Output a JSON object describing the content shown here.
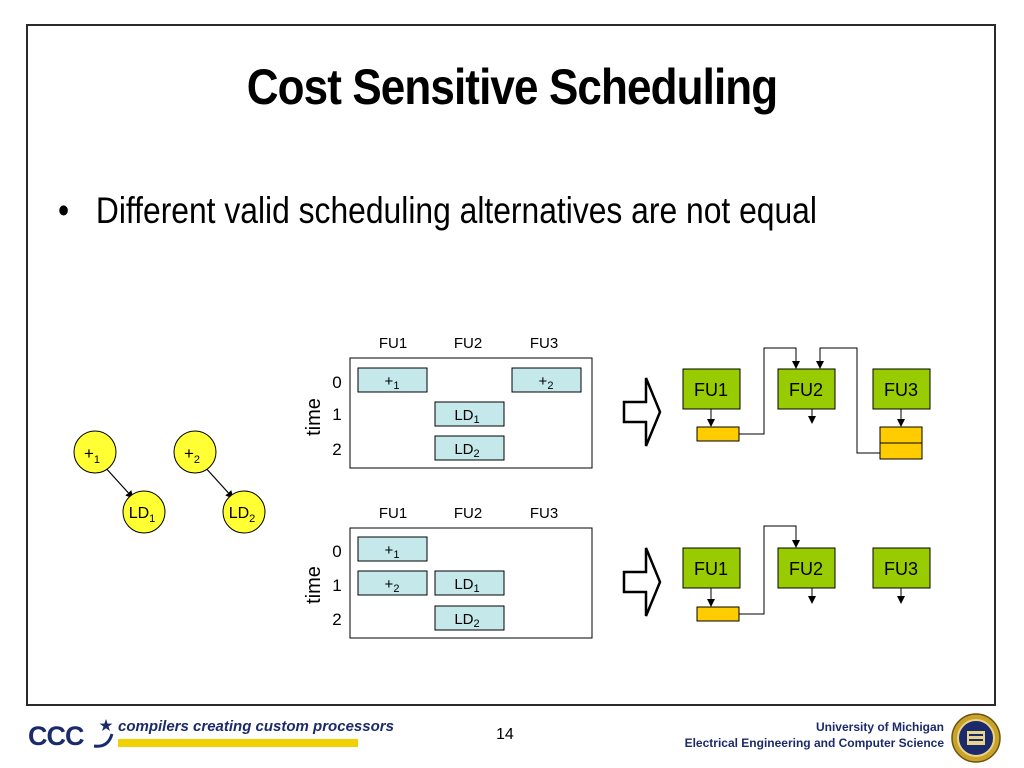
{
  "slide": {
    "title": "Cost Sensitive Scheduling",
    "bullet": "Different valid scheduling alternatives are not equal"
  },
  "dependency_graph": {
    "nodes": [
      {
        "id": "add1",
        "label": "+",
        "sub": "1"
      },
      {
        "id": "add2",
        "label": "+",
        "sub": "2"
      },
      {
        "id": "ld1",
        "label": "LD",
        "sub": "1"
      },
      {
        "id": "ld2",
        "label": "LD",
        "sub": "2"
      }
    ],
    "edges": [
      [
        "add1",
        "ld1"
      ],
      [
        "add2",
        "ld2"
      ]
    ]
  },
  "schedules": [
    {
      "columns": [
        "FU1",
        "FU2",
        "FU3"
      ],
      "time_label": "time",
      "rows": [
        "0",
        "1",
        "2"
      ],
      "ops": [
        {
          "label": "+",
          "sub": "1",
          "fu": 0,
          "t": 0
        },
        {
          "label": "+",
          "sub": "2",
          "fu": 2,
          "t": 0
        },
        {
          "label": "LD",
          "sub": "1",
          "fu": 1,
          "t": 1
        },
        {
          "label": "LD",
          "sub": "2",
          "fu": 1,
          "t": 2
        }
      ]
    },
    {
      "columns": [
        "FU1",
        "FU2",
        "FU3"
      ],
      "time_label": "time",
      "rows": [
        "0",
        "1",
        "2"
      ],
      "ops": [
        {
          "label": "+",
          "sub": "1",
          "fu": 0,
          "t": 0
        },
        {
          "label": "+",
          "sub": "2",
          "fu": 0,
          "t": 1
        },
        {
          "label": "LD",
          "sub": "1",
          "fu": 1,
          "t": 1
        },
        {
          "label": "LD",
          "sub": "2",
          "fu": 1,
          "t": 2
        }
      ]
    }
  ],
  "hardware": [
    {
      "units": [
        "FU1",
        "FU2",
        "FU3"
      ]
    },
    {
      "units": [
        "FU1",
        "FU2",
        "FU3"
      ]
    }
  ],
  "colors": {
    "node_fill": "#ffff33",
    "op_fill": "#c5e8ea",
    "fu_fill": "#99cc00",
    "register_fill": "#ffcc00",
    "brand_blue": "#1b2a6b",
    "tagline_bar": "#f2d100"
  },
  "footer": {
    "logo_text": "CCC",
    "tagline": "compilers creating custom processors",
    "page": "14",
    "university": "University of Michigan",
    "department": "Electrical Engineering and Computer Science"
  }
}
